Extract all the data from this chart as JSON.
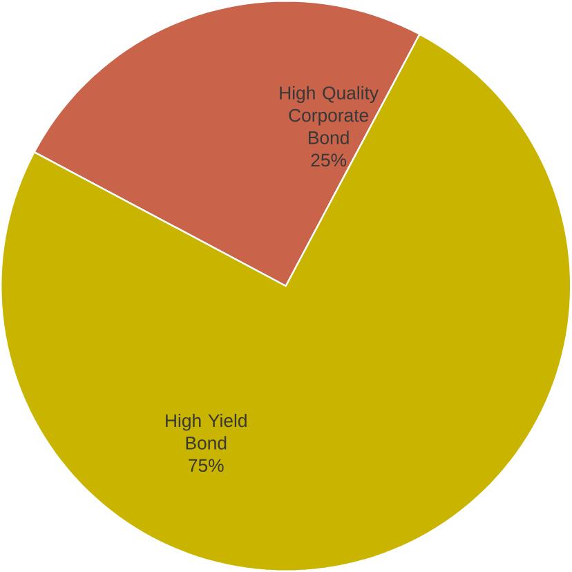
{
  "chart_data": {
    "type": "pie",
    "categories": [
      "High Quality Corporate Bond",
      "High Yield Bond"
    ],
    "values": [
      25,
      75
    ],
    "colors": [
      "#c9634a",
      "#c9b500"
    ],
    "value_labels": [
      "25%",
      "75%"
    ]
  }
}
